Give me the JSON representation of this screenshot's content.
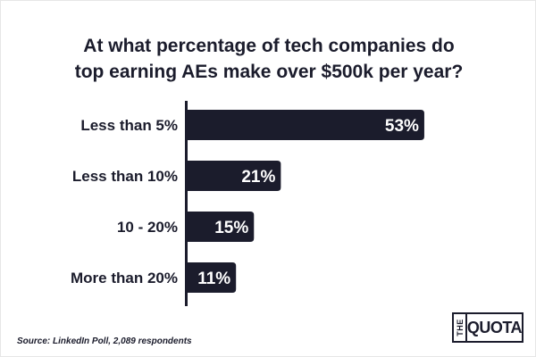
{
  "chart_data": {
    "type": "bar",
    "orientation": "horizontal",
    "title_lines": [
      "At what percentage of tech companies do",
      "top earning AEs make over $500k per year?"
    ],
    "categories": [
      "Less than 5%",
      "Less than 10%",
      "10 - 20%",
      "More than 20%"
    ],
    "values": [
      53,
      21,
      15,
      11
    ],
    "value_labels": [
      "53%",
      "21%",
      "15%",
      "11%"
    ],
    "unit": "%",
    "xlim": [
      0,
      56
    ],
    "xlabel": "",
    "ylabel": "",
    "grid": false,
    "bar_color": "#1b1c2c",
    "label_color": "#ffffff",
    "axis_color": "#1b1c2c"
  },
  "footer": {
    "source": "Source: LinkedIn Poll, 2,089 respondents"
  },
  "logo": {
    "the": "THE",
    "quota": "QUOTA"
  }
}
